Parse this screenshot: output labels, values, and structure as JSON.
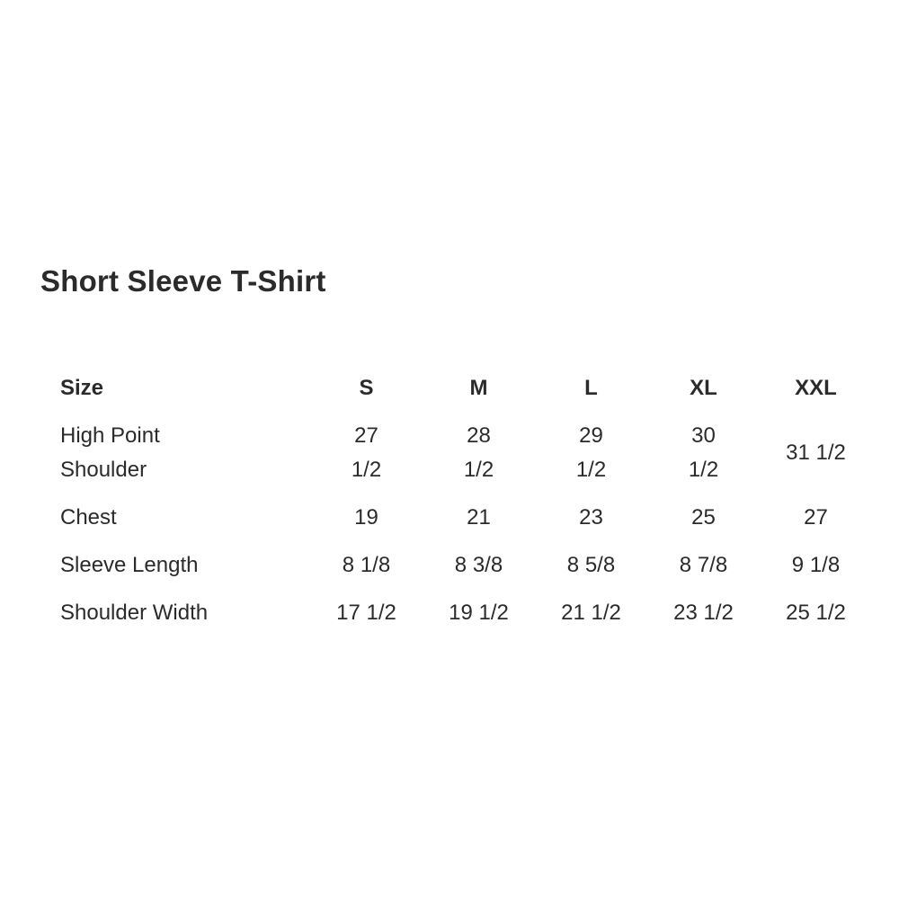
{
  "page": {
    "background_color": "#ffffff",
    "text_color": "#2b2b2b"
  },
  "product": {
    "title": "Short Sleeve T-Shirt"
  },
  "size_chart": {
    "header": [
      "Size",
      "S",
      "M",
      "L",
      "XL",
      "XXL"
    ],
    "rows": [
      {
        "label": "High Point\nShoulder",
        "values": [
          "27\n1/2",
          "28\n1/2",
          "29\n1/2",
          "30\n1/2",
          "31 1/2"
        ]
      },
      {
        "label": "Chest",
        "values": [
          "19",
          "21",
          "23",
          "25",
          "27"
        ]
      },
      {
        "label": "Sleeve Length",
        "values": [
          "8 1/8",
          "8 3/8",
          "8 5/8",
          "8 7/8",
          "9 1/8"
        ]
      },
      {
        "label": "Shoulder Width",
        "values": [
          "17 1/2",
          "19 1/2",
          "21 1/2",
          "23 1/2",
          "25 1/2"
        ]
      }
    ]
  }
}
